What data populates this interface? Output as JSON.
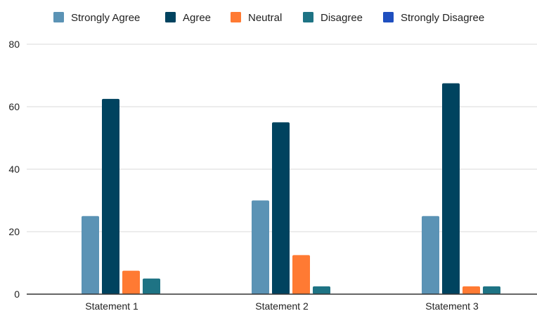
{
  "chart_data": {
    "type": "bar",
    "title": "",
    "xlabel": "",
    "ylabel": "",
    "ylim": [
      0,
      80
    ],
    "yticks": [
      0,
      20,
      40,
      60,
      80
    ],
    "grid": true,
    "legend_position": "top",
    "categories": [
      "Statement 1",
      "Statement 2",
      "Statement 3"
    ],
    "series": [
      {
        "name": "Strongly Agree",
        "color": "#5b93b5",
        "values": [
          25,
          30,
          25
        ]
      },
      {
        "name": "Agree",
        "color": "#00435f",
        "values": [
          62.5,
          55,
          67.5
        ]
      },
      {
        "name": "Neutral",
        "color": "#ff7a33",
        "values": [
          7.5,
          12.5,
          2.5
        ]
      },
      {
        "name": "Disagree",
        "color": "#1e7384",
        "values": [
          5,
          2.5,
          2.5
        ]
      },
      {
        "name": "Strongly Disagree",
        "color": "#1f4fbf",
        "values": [
          0,
          0,
          0
        ]
      }
    ]
  }
}
